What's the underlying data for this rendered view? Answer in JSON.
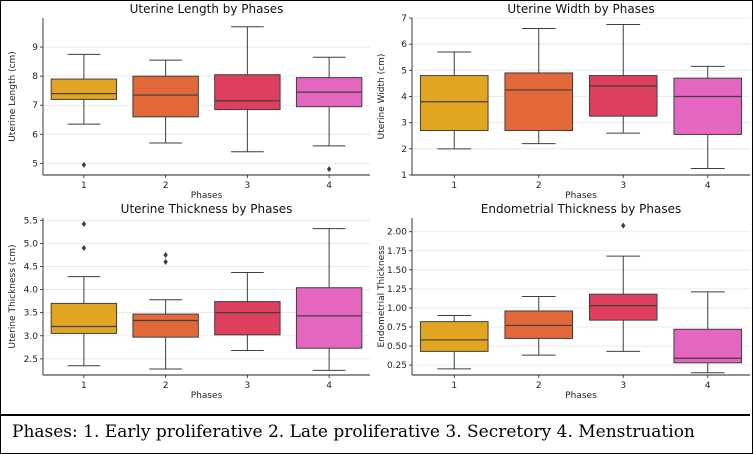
{
  "caption": "Phases: 1. Early proliferative    2. Late proliferative   3. Secretory   4. Menstruation",
  "colors": {
    "phase_1": "#e1a522",
    "phase_2": "#e2683a",
    "phase_3": "#df3f5f",
    "phase_4": "#e466c0",
    "grid": "#e6e6e6",
    "outline": "#3f3f3f"
  },
  "chart_data": [
    {
      "type": "box",
      "title": "Uterine Length by Phases",
      "xlabel": "Phases",
      "ylabel": "Uterine Length (cm)",
      "categories": [
        "1",
        "2",
        "3",
        "4"
      ],
      "ylim": [
        4.6,
        10.0
      ],
      "yticks": [
        5,
        6,
        7,
        8,
        9
      ],
      "grid": true,
      "boxes": [
        {
          "min": 6.35,
          "q1": 7.2,
          "median": 7.4,
          "q3": 7.9,
          "max": 8.75,
          "outliers": [
            4.95
          ]
        },
        {
          "min": 5.7,
          "q1": 6.6,
          "median": 7.35,
          "q3": 8.0,
          "max": 8.55,
          "outliers": []
        },
        {
          "min": 5.4,
          "q1": 6.85,
          "median": 7.15,
          "q3": 8.05,
          "max": 9.7,
          "outliers": []
        },
        {
          "min": 5.6,
          "q1": 6.95,
          "median": 7.45,
          "q3": 7.95,
          "max": 8.65,
          "outliers": [
            4.8
          ]
        }
      ]
    },
    {
      "type": "box",
      "title": "Uterine Width by Phases",
      "xlabel": "Phases",
      "ylabel": "Uterine Width (cm)",
      "categories": [
        "1",
        "2",
        "3",
        "4"
      ],
      "ylim": [
        1.0,
        7.0
      ],
      "yticks": [
        1,
        2,
        3,
        4,
        5,
        6,
        7
      ],
      "grid": true,
      "boxes": [
        {
          "min": 2.0,
          "q1": 2.7,
          "median": 3.8,
          "q3": 4.8,
          "max": 5.7,
          "outliers": []
        },
        {
          "min": 2.2,
          "q1": 2.7,
          "median": 4.25,
          "q3": 4.9,
          "max": 6.6,
          "outliers": []
        },
        {
          "min": 2.6,
          "q1": 3.25,
          "median": 4.4,
          "q3": 4.8,
          "max": 6.75,
          "outliers": []
        },
        {
          "min": 1.25,
          "q1": 2.55,
          "median": 4.0,
          "q3": 4.7,
          "max": 5.15,
          "outliers": []
        }
      ]
    },
    {
      "type": "box",
      "title": "Uterine Thickness by Phases",
      "xlabel": "Phases",
      "ylabel": "Uterine Thickness (cm)",
      "categories": [
        "1",
        "2",
        "3",
        "4"
      ],
      "ylim": [
        2.15,
        5.55
      ],
      "yticks": [
        2.5,
        3.0,
        3.5,
        4.0,
        4.5,
        5.0,
        5.5
      ],
      "ytick_labels": [
        "2.5",
        "3.0",
        "3.5",
        "4.0",
        "4.5",
        "5.0",
        "5.5"
      ],
      "grid": true,
      "boxes": [
        {
          "min": 2.35,
          "q1": 3.05,
          "median": 3.2,
          "q3": 3.7,
          "max": 4.28,
          "outliers": [
            4.9,
            5.42
          ]
        },
        {
          "min": 2.28,
          "q1": 2.97,
          "median": 3.33,
          "q3": 3.47,
          "max": 3.78,
          "outliers": [
            4.6,
            4.75
          ]
        },
        {
          "min": 2.68,
          "q1": 3.02,
          "median": 3.5,
          "q3": 3.74,
          "max": 4.37,
          "outliers": []
        },
        {
          "min": 2.25,
          "q1": 2.73,
          "median": 3.43,
          "q3": 4.04,
          "max": 5.32,
          "outliers": []
        }
      ]
    },
    {
      "type": "box",
      "title": "Endometrial Thickness by Phases",
      "xlabel": "Phases",
      "ylabel": "Endometrial Thickness",
      "categories": [
        "1",
        "2",
        "3",
        "4"
      ],
      "ylim": [
        0.12,
        2.18
      ],
      "yticks": [
        0.25,
        0.5,
        0.75,
        1.0,
        1.25,
        1.5,
        1.75,
        2.0
      ],
      "ytick_labels": [
        "0.25",
        "0.50",
        "0.75",
        "1.00",
        "1.25",
        "1.50",
        "1.75",
        "2.00"
      ],
      "grid": true,
      "boxes": [
        {
          "min": 0.2,
          "q1": 0.43,
          "median": 0.58,
          "q3": 0.82,
          "max": 0.9,
          "outliers": []
        },
        {
          "min": 0.38,
          "q1": 0.6,
          "median": 0.77,
          "q3": 0.96,
          "max": 1.15,
          "outliers": []
        },
        {
          "min": 0.43,
          "q1": 0.84,
          "median": 1.03,
          "q3": 1.18,
          "max": 1.68,
          "outliers": [
            2.08
          ]
        },
        {
          "min": 0.15,
          "q1": 0.28,
          "median": 0.34,
          "q3": 0.72,
          "max": 1.21,
          "outliers": []
        }
      ]
    }
  ]
}
